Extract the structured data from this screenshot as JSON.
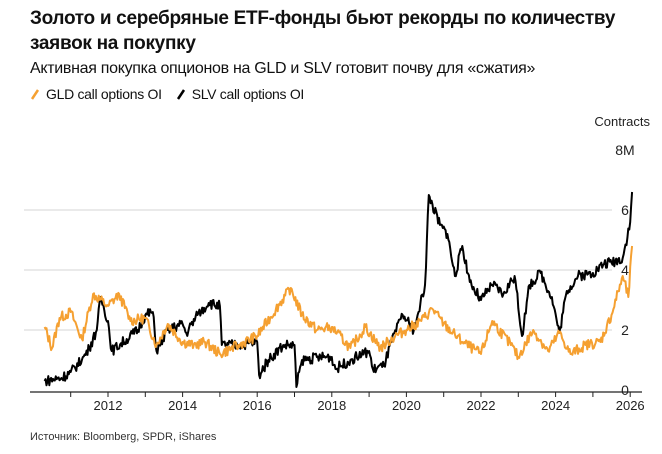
{
  "title": "Золото и серебряные ETF-фонды бьют рекорды по количеству заявок на покупку",
  "subtitle": "Активная покупка опционов на GLD и SLV готовит почву для «сжатия»",
  "source": "Источник: Bloomberg, SPDR, iShares",
  "chart_data": {
    "type": "line",
    "title": "Золото и серебряные ETF-фонды бьют рекорды по количеству заявок на покупку",
    "subtitle": "Активная покупка опционов на GLD и SLV готовит почву для «сжатия»",
    "ylabel": "Contracts",
    "ylim": [
      0,
      8
    ],
    "y_ticks": [
      "0",
      "2",
      "4",
      "6",
      "8M"
    ],
    "x_ticks": [
      "2012",
      "2014",
      "2016",
      "2018",
      "2020",
      "2022",
      "2024",
      "2026"
    ],
    "xlim": [
      2010.3,
      2026.1
    ],
    "grid": true,
    "legend_placement": "top-left",
    "series": [
      {
        "name": "GLD call options OI",
        "color": "#f5a031",
        "x": [
          2010.3,
          2010.5,
          2010.7,
          2011.0,
          2011.3,
          2011.6,
          2012.0,
          2012.3,
          2012.6,
          2013.0,
          2013.3,
          2013.6,
          2014.0,
          2014.3,
          2014.6,
          2015.0,
          2015.5,
          2016.0,
          2016.5,
          2016.9,
          2017.2,
          2017.6,
          2018.0,
          2018.5,
          2018.9,
          2019.3,
          2019.7,
          2020.0,
          2020.4,
          2020.7,
          2021.0,
          2021.5,
          2022.0,
          2022.3,
          2022.8,
          2023.0,
          2023.4,
          2023.8,
          2024.1,
          2024.4,
          2024.8,
          2025.2,
          2025.5,
          2025.8,
          2025.95,
          2026.05
        ],
        "values": [
          2.1,
          1.4,
          2.4,
          2.6,
          1.7,
          3.2,
          2.8,
          3.2,
          2.3,
          2.4,
          1.5,
          2.2,
          1.6,
          1.5,
          1.6,
          1.2,
          1.5,
          1.8,
          2.7,
          3.4,
          2.5,
          2.0,
          2.1,
          1.4,
          2.1,
          1.4,
          1.8,
          2.0,
          2.3,
          2.7,
          2.2,
          1.6,
          1.2,
          2.3,
          1.5,
          1.1,
          2.0,
          1.3,
          1.9,
          1.2,
          1.5,
          1.6,
          2.5,
          3.8,
          3.1,
          4.8
        ]
      },
      {
        "name": "SLV call options OI",
        "color": "#000000",
        "x": [
          2010.3,
          2010.75,
          2011.0,
          2011.3,
          2011.5,
          2011.7,
          2011.8,
          2012.0,
          2012.1,
          2012.5,
          2012.8,
          2013.0,
          2013.2,
          2013.3,
          2013.6,
          2014.0,
          2014.1,
          2014.4,
          2014.7,
          2015.0,
          2015.05,
          2015.5,
          2016.0,
          2016.05,
          2016.3,
          2016.7,
          2017.0,
          2017.05,
          2017.2,
          2017.7,
          2018.0,
          2018.1,
          2018.5,
          2019.0,
          2019.1,
          2019.4,
          2019.6,
          2019.9,
          2020.2,
          2020.3,
          2020.5,
          2020.6,
          2020.9,
          2021.1,
          2021.3,
          2021.5,
          2021.7,
          2022.0,
          2022.3,
          2022.6,
          2022.9,
          2023.1,
          2023.3,
          2023.6,
          2023.9,
          2024.1,
          2024.3,
          2024.6,
          2025.0,
          2025.3,
          2025.6,
          2025.8,
          2026.0,
          2026.05
        ],
        "values": [
          0.3,
          0.4,
          0.6,
          1.0,
          1.4,
          2.0,
          3.1,
          2.3,
          1.3,
          1.7,
          2.0,
          2.5,
          2.6,
          1.3,
          2.0,
          2.2,
          1.9,
          2.5,
          2.9,
          2.8,
          1.5,
          1.5,
          1.6,
          0.5,
          1.0,
          1.5,
          1.5,
          0.1,
          1.0,
          1.1,
          1.1,
          0.7,
          1.0,
          1.3,
          0.7,
          0.8,
          1.6,
          2.5,
          2.0,
          2.5,
          3.5,
          6.5,
          5.5,
          5.2,
          3.8,
          4.8,
          3.6,
          3.0,
          3.5,
          3.2,
          3.8,
          1.8,
          3.5,
          3.9,
          3.1,
          1.9,
          3.3,
          3.8,
          3.9,
          4.2,
          4.3,
          4.4,
          5.6,
          6.6
        ]
      }
    ]
  }
}
